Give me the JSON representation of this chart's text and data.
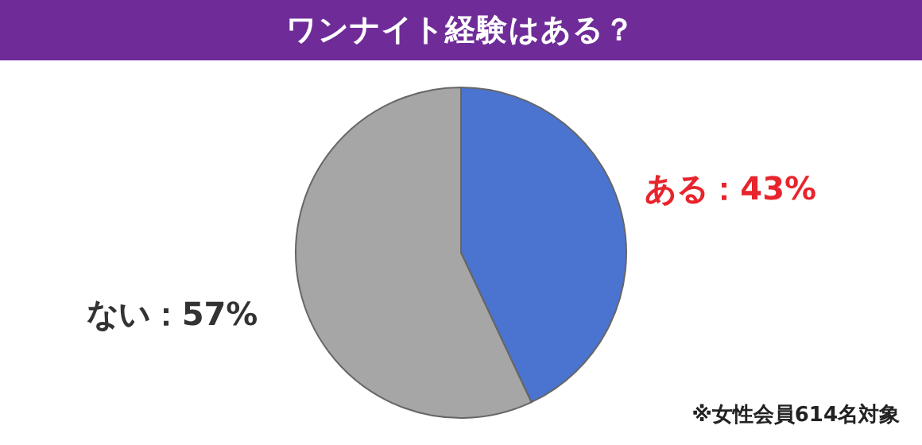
{
  "chart_data": {
    "type": "pie",
    "title": "ワンナイト経験はある？",
    "categories": [
      "ある",
      "ない"
    ],
    "values": [
      43,
      57
    ],
    "colors": [
      "#4a74d0",
      "#a6a6a6"
    ],
    "value_labels": [
      "：43%",
      "：57%"
    ],
    "annotations": [
      "※女性会員614名対象"
    ]
  }
}
